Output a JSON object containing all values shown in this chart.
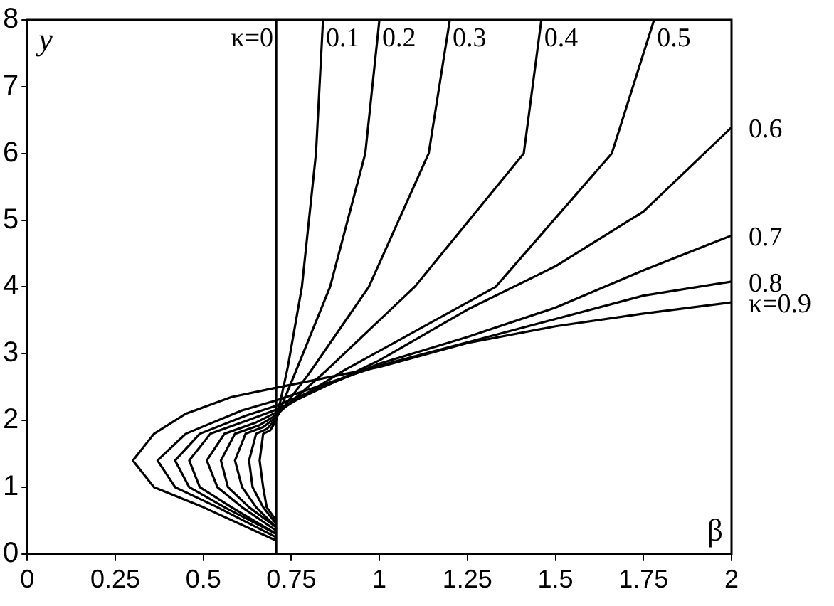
{
  "chart_data": {
    "type": "line",
    "xlabel": "β",
    "ylabel": "y",
    "xlim": [
      0,
      2
    ],
    "ylim": [
      0,
      8
    ],
    "xticks": [
      0,
      0.25,
      0.5,
      0.75,
      1,
      1.25,
      1.5,
      1.75,
      2
    ],
    "yticks": [
      0,
      1,
      2,
      3,
      4,
      5,
      6,
      7,
      8
    ],
    "grid": false,
    "legend": false,
    "marker": "none",
    "line_style": "solid",
    "series": [
      {
        "name": "κ=0",
        "color": "#000000",
        "x": [
          0.707,
          0.707
        ],
        "values": [
          0,
          8
        ]
      },
      {
        "name": "0.1",
        "color": "#000000",
        "x": [
          0.707,
          0.68,
          0.67,
          0.66,
          0.67,
          0.69,
          0.707,
          0.74,
          0.78,
          0.82,
          0.84
        ],
        "values": [
          0.5,
          0.7,
          1.0,
          1.4,
          1.8,
          1.85,
          2.0,
          2.8,
          4,
          6,
          8
        ]
      },
      {
        "name": "0.2",
        "color": "#000000",
        "x": [
          0.707,
          0.67,
          0.64,
          0.63,
          0.65,
          0.68,
          0.707,
          0.76,
          0.86,
          0.96,
          1.0
        ],
        "values": [
          0.45,
          0.7,
          1.0,
          1.4,
          1.8,
          1.87,
          2.02,
          2.7,
          4,
          6,
          8
        ]
      },
      {
        "name": "0.3",
        "color": "#000000",
        "x": [
          0.707,
          0.65,
          0.61,
          0.59,
          0.62,
          0.67,
          0.707,
          0.8,
          0.97,
          1.14,
          1.2
        ],
        "values": [
          0.4,
          0.7,
          1.0,
          1.4,
          1.8,
          1.9,
          2.05,
          2.7,
          4,
          6,
          8
        ]
      },
      {
        "name": "0.4",
        "color": "#000000",
        "x": [
          0.707,
          0.63,
          0.57,
          0.55,
          0.59,
          0.66,
          0.707,
          0.85,
          1.1,
          1.41,
          1.46
        ],
        "values": [
          0.4,
          0.7,
          1.0,
          1.4,
          1.8,
          1.93,
          2.08,
          2.75,
          4,
          6,
          8
        ]
      },
      {
        "name": "0.5",
        "color": "#000000",
        "x": [
          0.707,
          0.61,
          0.54,
          0.51,
          0.56,
          0.65,
          0.707,
          0.9,
          1.33,
          1.66,
          1.78
        ],
        "values": [
          0.35,
          0.7,
          1.0,
          1.4,
          1.8,
          1.97,
          2.12,
          2.75,
          4,
          6,
          8
        ]
      },
      {
        "name": "0.6",
        "color": "#000000",
        "x": [
          0.707,
          0.58,
          0.49,
          0.46,
          0.52,
          0.63,
          0.707,
          1,
          1.25,
          1.5,
          1.75,
          2
        ],
        "values": [
          0.3,
          0.7,
          1.0,
          1.4,
          1.8,
          2.01,
          2.16,
          2.9,
          3.66,
          4.31,
          5.13,
          6.39
        ]
      },
      {
        "name": "0.7",
        "color": "#000000",
        "x": [
          0.707,
          0.56,
          0.46,
          0.42,
          0.49,
          0.62,
          0.707,
          1,
          1.25,
          1.5,
          1.75,
          2
        ],
        "values": [
          0.3,
          0.7,
          1.0,
          1.4,
          1.8,
          2.07,
          2.22,
          2.85,
          3.25,
          3.69,
          4.25,
          4.77
        ]
      },
      {
        "name": "0.8",
        "color": "#000000",
        "x": [
          0.707,
          0.54,
          0.42,
          0.37,
          0.45,
          0.61,
          0.707,
          1,
          1.25,
          1.5,
          1.75,
          2
        ],
        "values": [
          0.25,
          0.7,
          1.0,
          1.4,
          1.8,
          2.15,
          2.3,
          2.82,
          3.17,
          3.52,
          3.87,
          4.08
        ]
      },
      {
        "name": "κ=0.9",
        "color": "#000000",
        "x": [
          0.707,
          0.5,
          0.36,
          0.3,
          0.36,
          0.45,
          0.58,
          0.707,
          1,
          1.25,
          1.5,
          1.75,
          2
        ],
        "values": [
          0.2,
          0.7,
          1.0,
          1.4,
          1.8,
          2.1,
          2.35,
          2.49,
          2.8,
          3.16,
          3.41,
          3.6,
          3.77
        ]
      }
    ]
  }
}
